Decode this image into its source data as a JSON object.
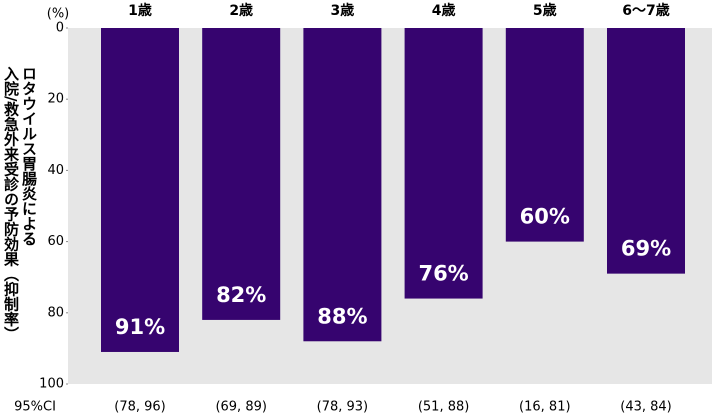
{
  "chart_data": {
    "type": "bar",
    "y_unit": "(%)",
    "ylabel": [
      "ロタウイルス胃腸炎による",
      "入院/救急外来受診の予防効果（抑制率）"
    ],
    "categories": [
      "1歳",
      "2歳",
      "3歳",
      "4歳",
      "5歳",
      "6〜7歳"
    ],
    "values": [
      91,
      82,
      88,
      76,
      60,
      69
    ],
    "value_labels": [
      "91%",
      "82%",
      "88%",
      "76%",
      "60%",
      "69%"
    ],
    "ci_title": "95%CI",
    "ci_labels": [
      "(78, 96)",
      "(69, 89)",
      "(78, 93)",
      "(51, 88)",
      "(16, 81)",
      "(43, 84)"
    ],
    "color": "#36046f",
    "ylim": [
      0,
      100
    ],
    "yticks": [
      0,
      20,
      40,
      60,
      80,
      100
    ],
    "y_inverted": true,
    "background": "#e6e6e6"
  }
}
